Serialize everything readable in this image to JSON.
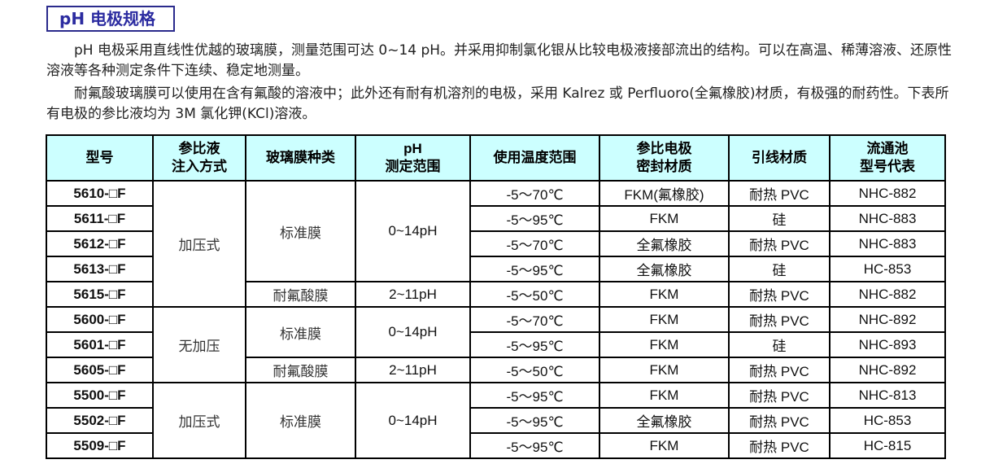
{
  "title": "pH 电极规格",
  "paragraphs": [
    "pH 电极采用直线性优越的玻璃膜，测量范围可达 0~14 pH。并采用抑制氯化银从比较电极液接部流出的结构。可以在高温、稀薄溶液、还原性溶液等各种测定条件下连续、稳定地测量。",
    "耐氟酸玻璃膜可以使用在含有氟酸的溶液中；此外还有耐有机溶剂的电极，采用 Kalrez 或 Perfluoro(全氟橡胶)材质，有极强的耐药性。下表所有电极的参比液均为 3M 氯化钾(KCl)溶液。"
  ],
  "table": {
    "headers": [
      [
        "型号"
      ],
      [
        "参比液",
        "注入方式"
      ],
      [
        "玻璃膜种类"
      ],
      [
        "pH",
        "测定范围"
      ],
      [
        "使用温度范围"
      ],
      [
        "参比电极",
        "密封材质"
      ],
      [
        "引线材质"
      ],
      [
        "流通池",
        "型号代表"
      ]
    ],
    "injection_groups": [
      "加压式",
      "无加压",
      "加压式"
    ],
    "membrane_groups": [
      "标准膜",
      "耐氟酸膜",
      "标准膜",
      "耐氟酸膜",
      "标准膜"
    ],
    "range_groups": [
      "0~14pH",
      "2~11pH",
      "0~14pH",
      "2~11pH",
      "0~14pH"
    ],
    "rows": [
      {
        "model": "5610-□F",
        "temp": "-5～70℃",
        "seal": "FKM(氟橡胶)",
        "lead": "耐热 PVC",
        "cell": "NHC-882"
      },
      {
        "model": "5611-□F",
        "temp": "-5～95℃",
        "seal": "FKM",
        "lead": "硅",
        "cell": "NHC-883"
      },
      {
        "model": "5612-□F",
        "temp": "-5～70℃",
        "seal": "全氟橡胶",
        "lead": "耐热 PVC",
        "cell": "NHC-883"
      },
      {
        "model": "5613-□F",
        "temp": "-5～95℃",
        "seal": "全氟橡胶",
        "lead": "硅",
        "cell": "HC-853"
      },
      {
        "model": "5615-□F",
        "temp": "-5～50℃",
        "seal": "FKM",
        "lead": "耐热 PVC",
        "cell": "NHC-882"
      },
      {
        "model": "5600-□F",
        "temp": "-5～70℃",
        "seal": "FKM",
        "lead": "耐热 PVC",
        "cell": "NHC-892"
      },
      {
        "model": "5601-□F",
        "temp": "-5～95℃",
        "seal": "FKM",
        "lead": "硅",
        "cell": "NHC-893"
      },
      {
        "model": "5605-□F",
        "temp": "-5～50℃",
        "seal": "FKM",
        "lead": "耐热 PVC",
        "cell": "NHC-892"
      },
      {
        "model": "5500-□F",
        "temp": "-5～95℃",
        "seal": "FKM",
        "lead": "耐热 PVC",
        "cell": "NHC-813"
      },
      {
        "model": "5502-□F",
        "temp": "-5～95℃",
        "seal": "全氟橡胶",
        "lead": "耐热 PVC",
        "cell": "HC-853"
      },
      {
        "model": "5509-□F",
        "temp": "-5～95℃",
        "seal": "FKM",
        "lead": "耐热 PVC",
        "cell": "HC-815"
      }
    ]
  }
}
